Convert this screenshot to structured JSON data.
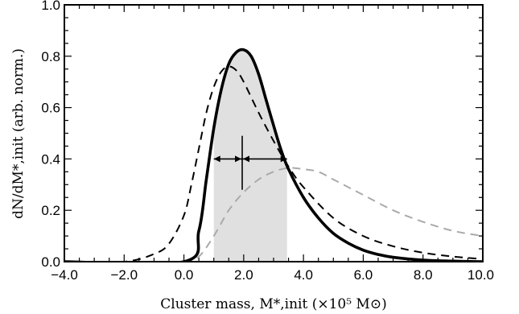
{
  "chart_data": {
    "type": "line",
    "xlabel": "Cluster mass, M*,init (×10⁵ M⊙)",
    "ylabel": "dN/dM*,init (arb. norm.)",
    "xlim": [
      -4.0,
      10.0
    ],
    "ylim": [
      0.0,
      1.0
    ],
    "x_ticks": [
      "−4.0",
      "−2.0",
      "0.0",
      "2.0",
      "4.0",
      "6.0",
      "8.0",
      "10.0"
    ],
    "y_ticks": [
      "0.0",
      "0.2",
      "0.4",
      "0.6",
      "0.8",
      "1.0"
    ],
    "grid": false,
    "legend": "none",
    "series": [
      {
        "style": "solid-thick",
        "color": "#000000",
        "x": [
          -4.0,
          0.0,
          0.5,
          0.75,
          1.0,
          1.25,
          1.5,
          1.75,
          2.0,
          2.25,
          2.5,
          2.75,
          3.0,
          3.25,
          3.5,
          4.0,
          4.5,
          5.0,
          5.5,
          6.0,
          6.5,
          7.0,
          8.0,
          9.0,
          10.0
        ],
        "y": [
          0.0,
          0.0,
          0.12,
          0.32,
          0.52,
          0.67,
          0.77,
          0.815,
          0.825,
          0.8,
          0.73,
          0.63,
          0.53,
          0.435,
          0.36,
          0.25,
          0.17,
          0.11,
          0.072,
          0.045,
          0.028,
          0.017,
          0.006,
          0.002,
          0.0
        ]
      },
      {
        "style": "dashed",
        "color": "#000000",
        "x": [
          -4.0,
          -2.0,
          -1.0,
          -0.5,
          0.0,
          0.25,
          0.5,
          0.75,
          1.0,
          1.25,
          1.5,
          1.75,
          2.0,
          2.5,
          3.0,
          3.5,
          4.0,
          5.0,
          6.0,
          7.0,
          8.0,
          9.0,
          10.0
        ],
        "y": [
          0.0,
          0.0,
          0.03,
          0.07,
          0.18,
          0.3,
          0.44,
          0.58,
          0.68,
          0.74,
          0.76,
          0.745,
          0.7,
          0.58,
          0.47,
          0.37,
          0.29,
          0.17,
          0.1,
          0.06,
          0.035,
          0.02,
          0.01
        ]
      },
      {
        "style": "dashed",
        "color": "#aaaaaa",
        "x": [
          0.0,
          0.5,
          1.0,
          1.5,
          2.0,
          2.5,
          3.0,
          3.5,
          4.0,
          4.5,
          5.0,
          5.5,
          6.0,
          7.0,
          8.0,
          9.0,
          10.0
        ],
        "y": [
          0.0,
          0.02,
          0.1,
          0.2,
          0.27,
          0.32,
          0.35,
          0.365,
          0.36,
          0.35,
          0.32,
          0.29,
          0.26,
          0.2,
          0.155,
          0.12,
          0.1
        ]
      }
    ],
    "shaded_region": {
      "x_start": 1.0,
      "x_end": 3.45,
      "color": "#e0e0e0",
      "upper_curve": 0
    },
    "annotations": {
      "peak_x": 1.95,
      "vline_y": [
        0.28,
        0.49
      ],
      "arrow_y": 0.4,
      "arrow_left_x": 1.0,
      "arrow_right_x": 3.45
    }
  }
}
